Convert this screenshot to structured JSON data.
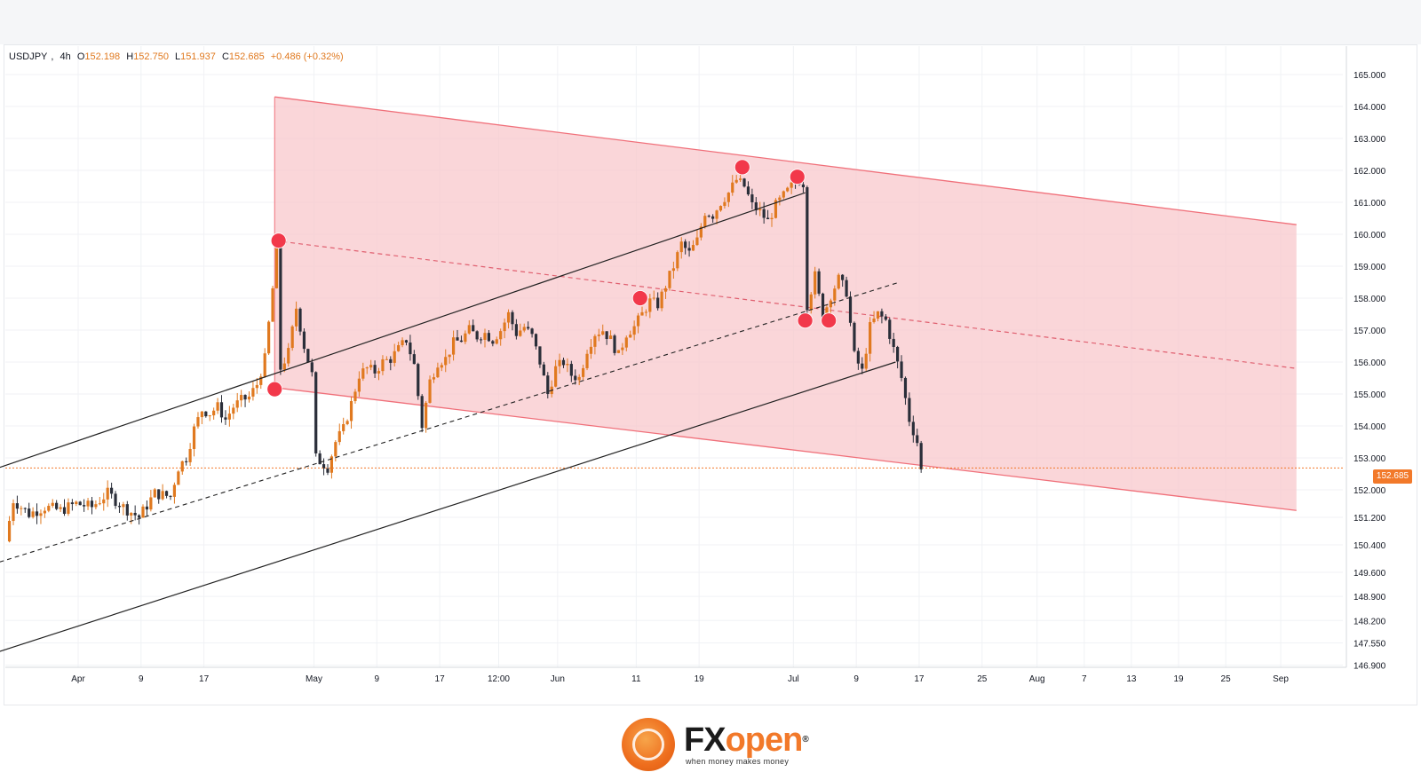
{
  "legend": {
    "symbol": "USDJPY",
    "interval": "4h",
    "open_label": "O",
    "open": "152.198",
    "high_label": "H",
    "high": "152.750",
    "low_label": "L",
    "low": "151.937",
    "close_label": "C",
    "close": "152.685",
    "change": "+0.486 (+0.32%)"
  },
  "last_price_badge": "152.685",
  "colors": {
    "up": "#e0791f",
    "down": "#2a2e39",
    "channel_fill": "#f8c8cc",
    "channel_edge": "#f0707a",
    "marker": "#f2384a",
    "badge": "#f2792a"
  },
  "brand": {
    "fx": "FX",
    "open": "open",
    "reg": "®",
    "tagline": "when money makes money"
  },
  "chart_data": {
    "type": "candlestick",
    "symbol": "USDJPY",
    "interval": "4h",
    "y_ticks": [
      {
        "label": "165.000",
        "value": 165.0
      },
      {
        "label": "164.000",
        "value": 164.0
      },
      {
        "label": "163.000",
        "value": 163.0
      },
      {
        "label": "162.000",
        "value": 162.0
      },
      {
        "label": "161.000",
        "value": 161.0
      },
      {
        "label": "160.000",
        "value": 160.0
      },
      {
        "label": "159.000",
        "value": 159.0
      },
      {
        "label": "158.000",
        "value": 158.0
      },
      {
        "label": "157.000",
        "value": 157.0
      },
      {
        "label": "156.000",
        "value": 156.0
      },
      {
        "label": "155.000",
        "value": 155.0
      },
      {
        "label": "154.000",
        "value": 154.0
      },
      {
        "label": "153.000",
        "value": 153.0
      },
      {
        "label": "152.000",
        "value": 152.0
      },
      {
        "label": "151.200",
        "value": 151.2
      },
      {
        "label": "150.400",
        "value": 150.4
      },
      {
        "label": "149.600",
        "value": 149.6
      },
      {
        "label": "148.900",
        "value": 148.9
      },
      {
        "label": "148.200",
        "value": 148.2
      },
      {
        "label": "147.550",
        "value": 147.55
      },
      {
        "label": "146.900",
        "value": 146.9
      }
    ],
    "x_ticks": [
      {
        "label": "Apr",
        "t": 0
      },
      {
        "label": "9",
        "t": 8
      },
      {
        "label": "17",
        "t": 16
      },
      {
        "label": "May",
        "t": 30
      },
      {
        "label": "9",
        "t": 38
      },
      {
        "label": "17",
        "t": 46
      },
      {
        "label": "12:00",
        "t": 53.5
      },
      {
        "label": "Jun",
        "t": 61
      },
      {
        "label": "11",
        "t": 71
      },
      {
        "label": "19",
        "t": 79
      },
      {
        "label": "Jul",
        "t": 91
      },
      {
        "label": "9",
        "t": 99
      },
      {
        "label": "17",
        "t": 107
      },
      {
        "label": "25",
        "t": 115
      },
      {
        "label": "Aug",
        "t": 122
      },
      {
        "label": "7",
        "t": 128
      },
      {
        "label": "13",
        "t": 134
      },
      {
        "label": "19",
        "t": 140
      },
      {
        "label": "25",
        "t": 146
      },
      {
        "label": "Sep",
        "t": 153
      }
    ],
    "price_path": [
      [
        -9,
        150.5
      ],
      [
        -8,
        151.7
      ],
      [
        -6,
        151.3
      ],
      [
        -4,
        151.5
      ],
      [
        -2,
        151.4
      ],
      [
        0,
        151.6
      ],
      [
        2,
        151.5
      ],
      [
        4,
        151.9
      ],
      [
        6,
        151.5
      ],
      [
        8,
        151.2
      ],
      [
        10,
        151.9
      ],
      [
        12,
        151.8
      ],
      [
        13,
        152.7
      ],
      [
        14,
        153.0
      ],
      [
        15,
        153.9
      ],
      [
        16,
        154.5
      ],
      [
        17,
        154.4
      ],
      [
        18,
        154.6
      ],
      [
        19,
        154.2
      ],
      [
        20,
        154.6
      ],
      [
        21,
        154.8
      ],
      [
        22,
        154.9
      ],
      [
        23,
        155.3
      ],
      [
        24,
        156.1
      ],
      [
        25,
        158.3
      ],
      [
        25.5,
        159.6
      ],
      [
        26,
        155.8
      ],
      [
        27,
        156.3
      ],
      [
        28,
        157.7
      ],
      [
        29,
        156.5
      ],
      [
        30,
        155.6
      ],
      [
        30.5,
        153.0
      ],
      [
        31,
        152.9
      ],
      [
        32,
        152.7
      ],
      [
        33,
        153.5
      ],
      [
        34,
        153.9
      ],
      [
        35,
        154.7
      ],
      [
        36,
        155.6
      ],
      [
        37,
        155.8
      ],
      [
        38,
        155.7
      ],
      [
        39,
        156.0
      ],
      [
        40,
        156.1
      ],
      [
        41,
        156.4
      ],
      [
        42,
        156.7
      ],
      [
        43,
        155.9
      ],
      [
        44,
        154.0
      ],
      [
        45,
        155.4
      ],
      [
        46,
        156.0
      ],
      [
        47,
        156.1
      ],
      [
        48,
        156.6
      ],
      [
        49,
        156.7
      ],
      [
        50,
        157.0
      ],
      [
        51,
        156.8
      ],
      [
        52,
        156.9
      ],
      [
        53,
        156.7
      ],
      [
        54,
        157.0
      ],
      [
        55,
        157.5
      ],
      [
        56,
        156.9
      ],
      [
        57,
        157.1
      ],
      [
        58,
        156.8
      ],
      [
        59,
        156.0
      ],
      [
        60,
        155.0
      ],
      [
        61,
        155.8
      ],
      [
        62,
        156.0
      ],
      [
        63,
        155.6
      ],
      [
        64,
        155.5
      ],
      [
        65,
        156.4
      ],
      [
        66,
        156.9
      ],
      [
        67,
        157.0
      ],
      [
        68,
        156.7
      ],
      [
        69,
        156.2
      ],
      [
        70,
        156.9
      ],
      [
        71,
        157.1
      ],
      [
        72,
        157.5
      ],
      [
        73,
        157.9
      ],
      [
        74,
        157.8
      ],
      [
        75,
        158.4
      ],
      [
        76,
        159.0
      ],
      [
        77,
        159.7
      ],
      [
        78,
        159.4
      ],
      [
        79,
        159.8
      ],
      [
        80,
        160.7
      ],
      [
        81,
        160.6
      ],
      [
        82,
        161.0
      ],
      [
        83,
        161.3
      ],
      [
        84,
        161.7
      ],
      [
        85,
        161.5
      ],
      [
        86,
        160.9
      ],
      [
        87,
        160.7
      ],
      [
        88,
        160.4
      ],
      [
        89,
        160.9
      ],
      [
        90,
        161.2
      ],
      [
        91,
        161.5
      ],
      [
        92,
        161.7
      ],
      [
        92.5,
        161.6
      ],
      [
        93,
        157.8
      ],
      [
        94,
        158.7
      ],
      [
        95,
        157.4
      ],
      [
        96,
        158.1
      ],
      [
        97,
        158.6
      ],
      [
        98,
        158.2
      ],
      [
        99,
        156.2
      ],
      [
        100,
        155.7
      ],
      [
        101,
        157.1
      ],
      [
        102,
        157.5
      ],
      [
        103,
        157.3
      ],
      [
        104,
        156.4
      ],
      [
        105,
        155.5
      ],
      [
        106,
        154.2
      ],
      [
        107,
        153.5
      ],
      [
        107.5,
        152.6
      ]
    ],
    "last_close": 152.685,
    "channel": {
      "upper": [
        [
          25,
          164.3
        ],
        [
          155,
          160.3
        ]
      ],
      "lower": [
        [
          25,
          155.2
        ],
        [
          155,
          151.4
        ]
      ],
      "mid": [
        [
          25,
          159.8
        ],
        [
          155,
          155.8
        ]
      ]
    },
    "trendlines": {
      "upper_rising": [
        [
          -10,
          152.7
        ],
        [
          92.5,
          161.3
        ]
      ],
      "middle_dashed": [
        [
          -10,
          149.9
        ],
        [
          104.5,
          158.5
        ]
      ],
      "lower_rising": [
        [
          -10,
          147.3
        ],
        [
          104,
          156.0
        ]
      ]
    },
    "markers": [
      [
        25,
        155.15
      ],
      [
        25.5,
        159.8
      ],
      [
        71.5,
        158.0
      ],
      [
        84.5,
        162.1
      ],
      [
        91.5,
        161.8
      ],
      [
        92.5,
        157.3
      ],
      [
        95.5,
        157.3
      ]
    ]
  }
}
